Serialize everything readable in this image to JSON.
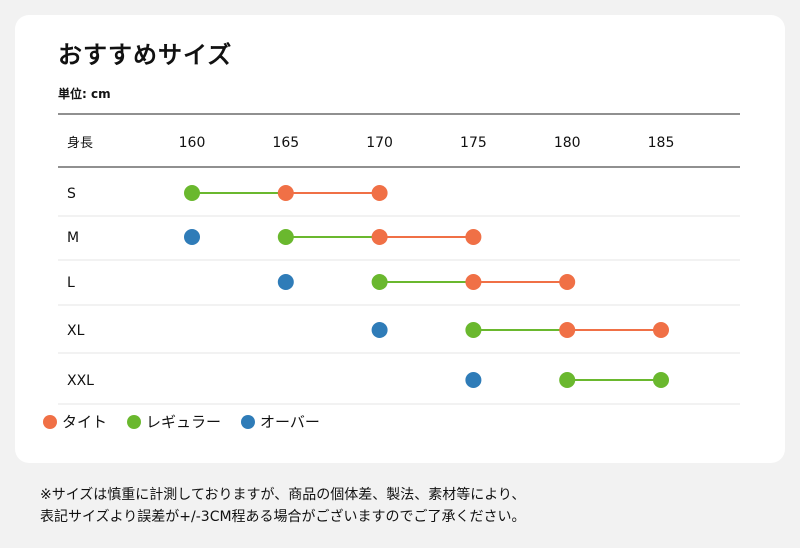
{
  "title": "おすすめサイズ",
  "unit_label": "単位: cm",
  "colors": {
    "tight": "#f07046",
    "regular": "#6ab82e",
    "over": "#2f7cb8"
  },
  "legend": [
    {
      "key": "tight",
      "label": "タイト",
      "color": "#f07046"
    },
    {
      "key": "regular",
      "label": "レギュラー",
      "color": "#6ab82e"
    },
    {
      "key": "over",
      "label": "オーバー",
      "color": "#2f7cb8"
    }
  ],
  "note_lines": [
    "※サイズは慎重に計測しておりますが、商品の個体差、製法、素材等により、",
    "表記サイズより誤差が+/-3CM程ある場合がございますのでご了承ください。"
  ],
  "chart_data": {
    "type": "range-dot",
    "x_axis_label": "身長",
    "x_ticks": [
      160,
      165,
      170,
      175,
      180,
      185
    ],
    "xlim": [
      160,
      185
    ],
    "rows": [
      {
        "size": "S",
        "over": null,
        "regular": 160,
        "tight": 165,
        "end": 170
      },
      {
        "size": "M",
        "over": 160,
        "regular": 165,
        "tight": 170,
        "end": 175
      },
      {
        "size": "L",
        "over": 165,
        "regular": 170,
        "tight": 175,
        "end": 180
      },
      {
        "size": "XL",
        "over": 170,
        "regular": 175,
        "tight": 180,
        "end": 185
      },
      {
        "size": "XXL",
        "over": 175,
        "regular": 180,
        "tight": null,
        "end": 185
      }
    ]
  }
}
